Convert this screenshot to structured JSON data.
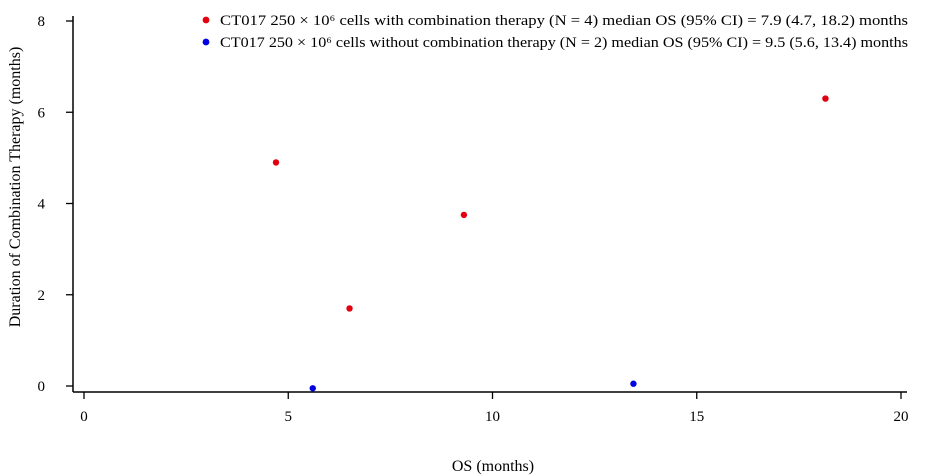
{
  "chart_data": {
    "type": "scatter",
    "title": "",
    "xlabel": "OS (months)",
    "ylabel": "Duration of Combination Therapy (months)",
    "xlim": [
      0,
      20
    ],
    "ylim": [
      0,
      8
    ],
    "x_ticks": [
      0,
      5,
      10,
      15,
      20
    ],
    "y_ticks": [
      0,
      2,
      4,
      6,
      8
    ],
    "grid": false,
    "legend_position": "top-right",
    "series": [
      {
        "name": "CT017 250 × 10⁶ cells with combination therapy (N = 4) median OS (95% CI) = 7.9 (4.7, 18.2) months",
        "color": "#e3000f",
        "points": [
          {
            "x": 4.7,
            "y": 4.9
          },
          {
            "x": 6.5,
            "y": 1.7
          },
          {
            "x": 9.3,
            "y": 3.75
          },
          {
            "x": 18.15,
            "y": 6.3
          }
        ]
      },
      {
        "name": "CT017 250 × 10⁶ cells without combination therapy (N = 2) median OS (95% CI) = 9.5 (5.6, 13.4) months",
        "color": "#0000e0",
        "points": [
          {
            "x": 5.6,
            "y": -0.05
          },
          {
            "x": 13.45,
            "y": 0.05
          }
        ]
      }
    ]
  }
}
